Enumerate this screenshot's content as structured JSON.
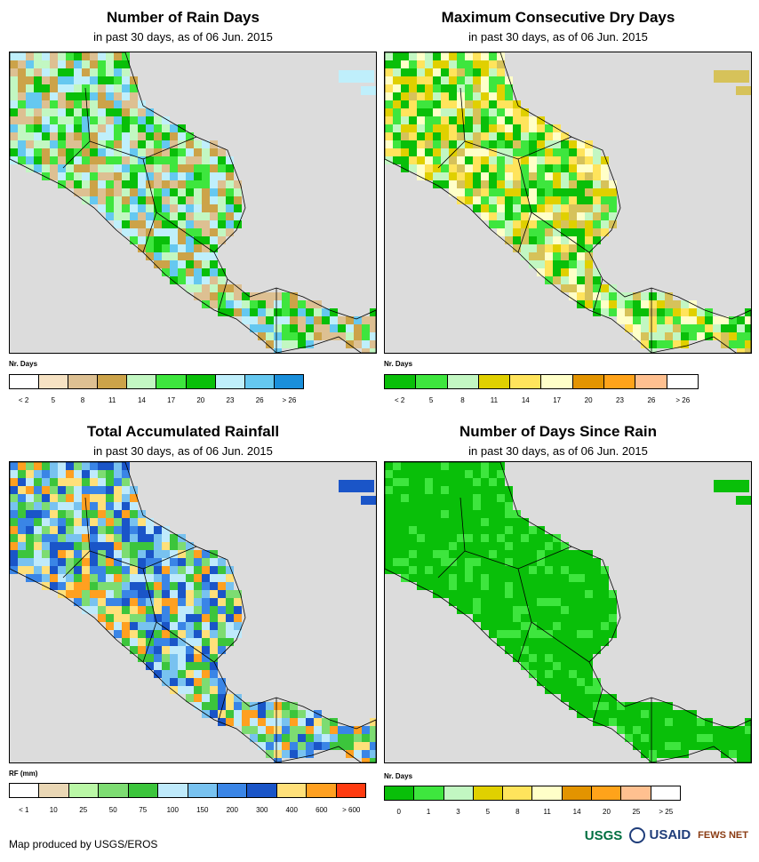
{
  "panels": [
    {
      "title": "Number of Rain Days",
      "subtitle": "in past 30 days, as of 06 Jun. 2015",
      "legend_title": "Nr. Days",
      "legend_colors": [
        "#ffffff",
        "#f6e2c3",
        "#ddc092",
        "#cca349",
        "#c2f7c2",
        "#3ee63e",
        "#09bf09",
        "#bfeffb",
        "#65c8f0",
        "#1a8fdb"
      ],
      "legend_labels": [
        "< 2",
        "5",
        "8",
        "11",
        "14",
        "17",
        "20",
        "23",
        "26",
        "> 26"
      ],
      "map_land_colors": [
        "#ddc092",
        "#cca349",
        "#c2f7c2",
        "#3ee63e",
        "#09bf09",
        "#65c8f0",
        "#bfeffb"
      ]
    },
    {
      "title": "Maximum Consecutive Dry Days",
      "subtitle": "in past 30 days, as of 06 Jun. 2015",
      "legend_title": "Nr. Days",
      "legend_colors": [
        "#09bf09",
        "#3ee63e",
        "#c2f7c2",
        "#e0d000",
        "#ffe45c",
        "#ffffc8",
        "#e39400",
        "#ffa31a",
        "#ffc090",
        "#ffffff"
      ],
      "legend_labels": [
        "< 2",
        "5",
        "8",
        "11",
        "14",
        "17",
        "20",
        "23",
        "26",
        "> 26"
      ],
      "map_land_colors": [
        "#c2f7c2",
        "#ffffc8",
        "#ffe45c",
        "#e0d000",
        "#3ee63e",
        "#09bf09",
        "#d6c25a"
      ]
    },
    {
      "title": "Total Accumulated Rainfall",
      "subtitle": "in past 30 days, as of 06 Jun. 2015",
      "legend_title": "RF (mm)",
      "legend_colors": [
        "#ffffff",
        "#ead7b5",
        "#baf7a6",
        "#7ddc72",
        "#3cc53c",
        "#bfeafb",
        "#78c2f0",
        "#3a85e6",
        "#1a55c8",
        "#ffe07a",
        "#ffa020",
        "#ff3b10"
      ],
      "legend_labels": [
        "< 1",
        "10",
        "25",
        "50",
        "75",
        "100",
        "150",
        "200",
        "300",
        "400",
        "600",
        "> 600"
      ],
      "map_land_colors": [
        "#78c2f0",
        "#bfeafb",
        "#3a85e6",
        "#7ddc72",
        "#3cc53c",
        "#ffa020",
        "#ffe07a",
        "#1a55c8"
      ]
    },
    {
      "title": "Number of Days Since Rain",
      "subtitle": "in past 30 days, as of 06 Jun. 2015",
      "legend_title": "Nr. Days",
      "legend_colors": [
        "#09bf09",
        "#3ee63e",
        "#c2f7c2",
        "#e0d000",
        "#ffe45c",
        "#ffffc8",
        "#e39400",
        "#ffa31a",
        "#ffc090",
        "#ffffff"
      ],
      "legend_labels": [
        "0",
        "1",
        "3",
        "5",
        "8",
        "11",
        "14",
        "20",
        "25",
        "> 25"
      ],
      "map_land_colors": [
        "#09bf09",
        "#09bf09",
        "#09bf09",
        "#3ee63e",
        "#09bf09"
      ]
    }
  ],
  "credit": "Map produced by USGS/EROS",
  "logos": {
    "usgs": "USGS",
    "usaid": "USAID",
    "fewsnet": "FEWS NET"
  }
}
